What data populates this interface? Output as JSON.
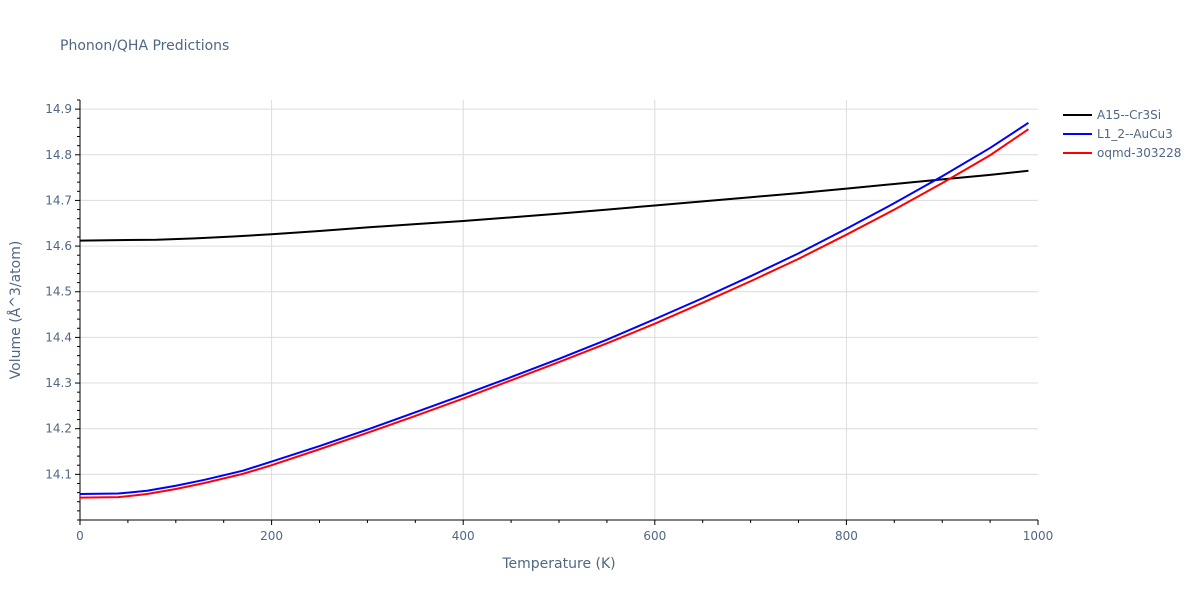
{
  "chart_data": {
    "type": "line",
    "title": "Phonon/QHA Predictions",
    "xlabel": "Temperature (K)",
    "ylabel": "Volume (Å^3/atom)",
    "xlim": [
      0,
      1000
    ],
    "ylim": [
      14.0,
      14.92
    ],
    "xticks": [
      0,
      200,
      400,
      600,
      800,
      1000
    ],
    "yticks": [
      14.1,
      14.2,
      14.3,
      14.4,
      14.5,
      14.6,
      14.7,
      14.8,
      14.9
    ],
    "grid": true,
    "legend_position": "top-right",
    "series": [
      {
        "name": "A15--Cr3Si",
        "color": "#000000",
        "x": [
          0,
          40,
          80,
          120,
          160,
          200,
          250,
          300,
          350,
          400,
          450,
          500,
          550,
          600,
          650,
          700,
          750,
          800,
          850,
          900,
          950,
          990
        ],
        "y": [
          14.612,
          14.613,
          14.614,
          14.617,
          14.621,
          14.626,
          14.633,
          14.641,
          14.648,
          14.655,
          14.663,
          14.671,
          14.68,
          14.689,
          14.698,
          14.707,
          14.716,
          14.726,
          14.736,
          14.746,
          14.756,
          14.765
        ]
      },
      {
        "name": "L1_2--AuCu3",
        "color": "#0000ff",
        "x": [
          0,
          40,
          70,
          100,
          130,
          170,
          200,
          250,
          300,
          350,
          400,
          450,
          500,
          550,
          600,
          650,
          700,
          750,
          800,
          850,
          900,
          950,
          990
        ],
        "y": [
          14.057,
          14.058,
          14.064,
          14.075,
          14.088,
          14.108,
          14.128,
          14.162,
          14.198,
          14.236,
          14.274,
          14.313,
          14.353,
          14.395,
          14.44,
          14.486,
          14.534,
          14.584,
          14.638,
          14.694,
          14.753,
          14.815,
          14.87
        ]
      },
      {
        "name": "oqmd-303228",
        "color": "#ff0000",
        "x": [
          0,
          40,
          70,
          100,
          130,
          170,
          200,
          250,
          300,
          350,
          400,
          450,
          500,
          550,
          600,
          650,
          700,
          750,
          800,
          850,
          900,
          950,
          990
        ],
        "y": [
          14.049,
          14.05,
          14.057,
          14.068,
          14.081,
          14.101,
          14.12,
          14.155,
          14.191,
          14.228,
          14.266,
          14.306,
          14.346,
          14.387,
          14.43,
          14.476,
          14.523,
          14.572,
          14.625,
          14.68,
          14.738,
          14.799,
          14.856
        ]
      }
    ]
  }
}
